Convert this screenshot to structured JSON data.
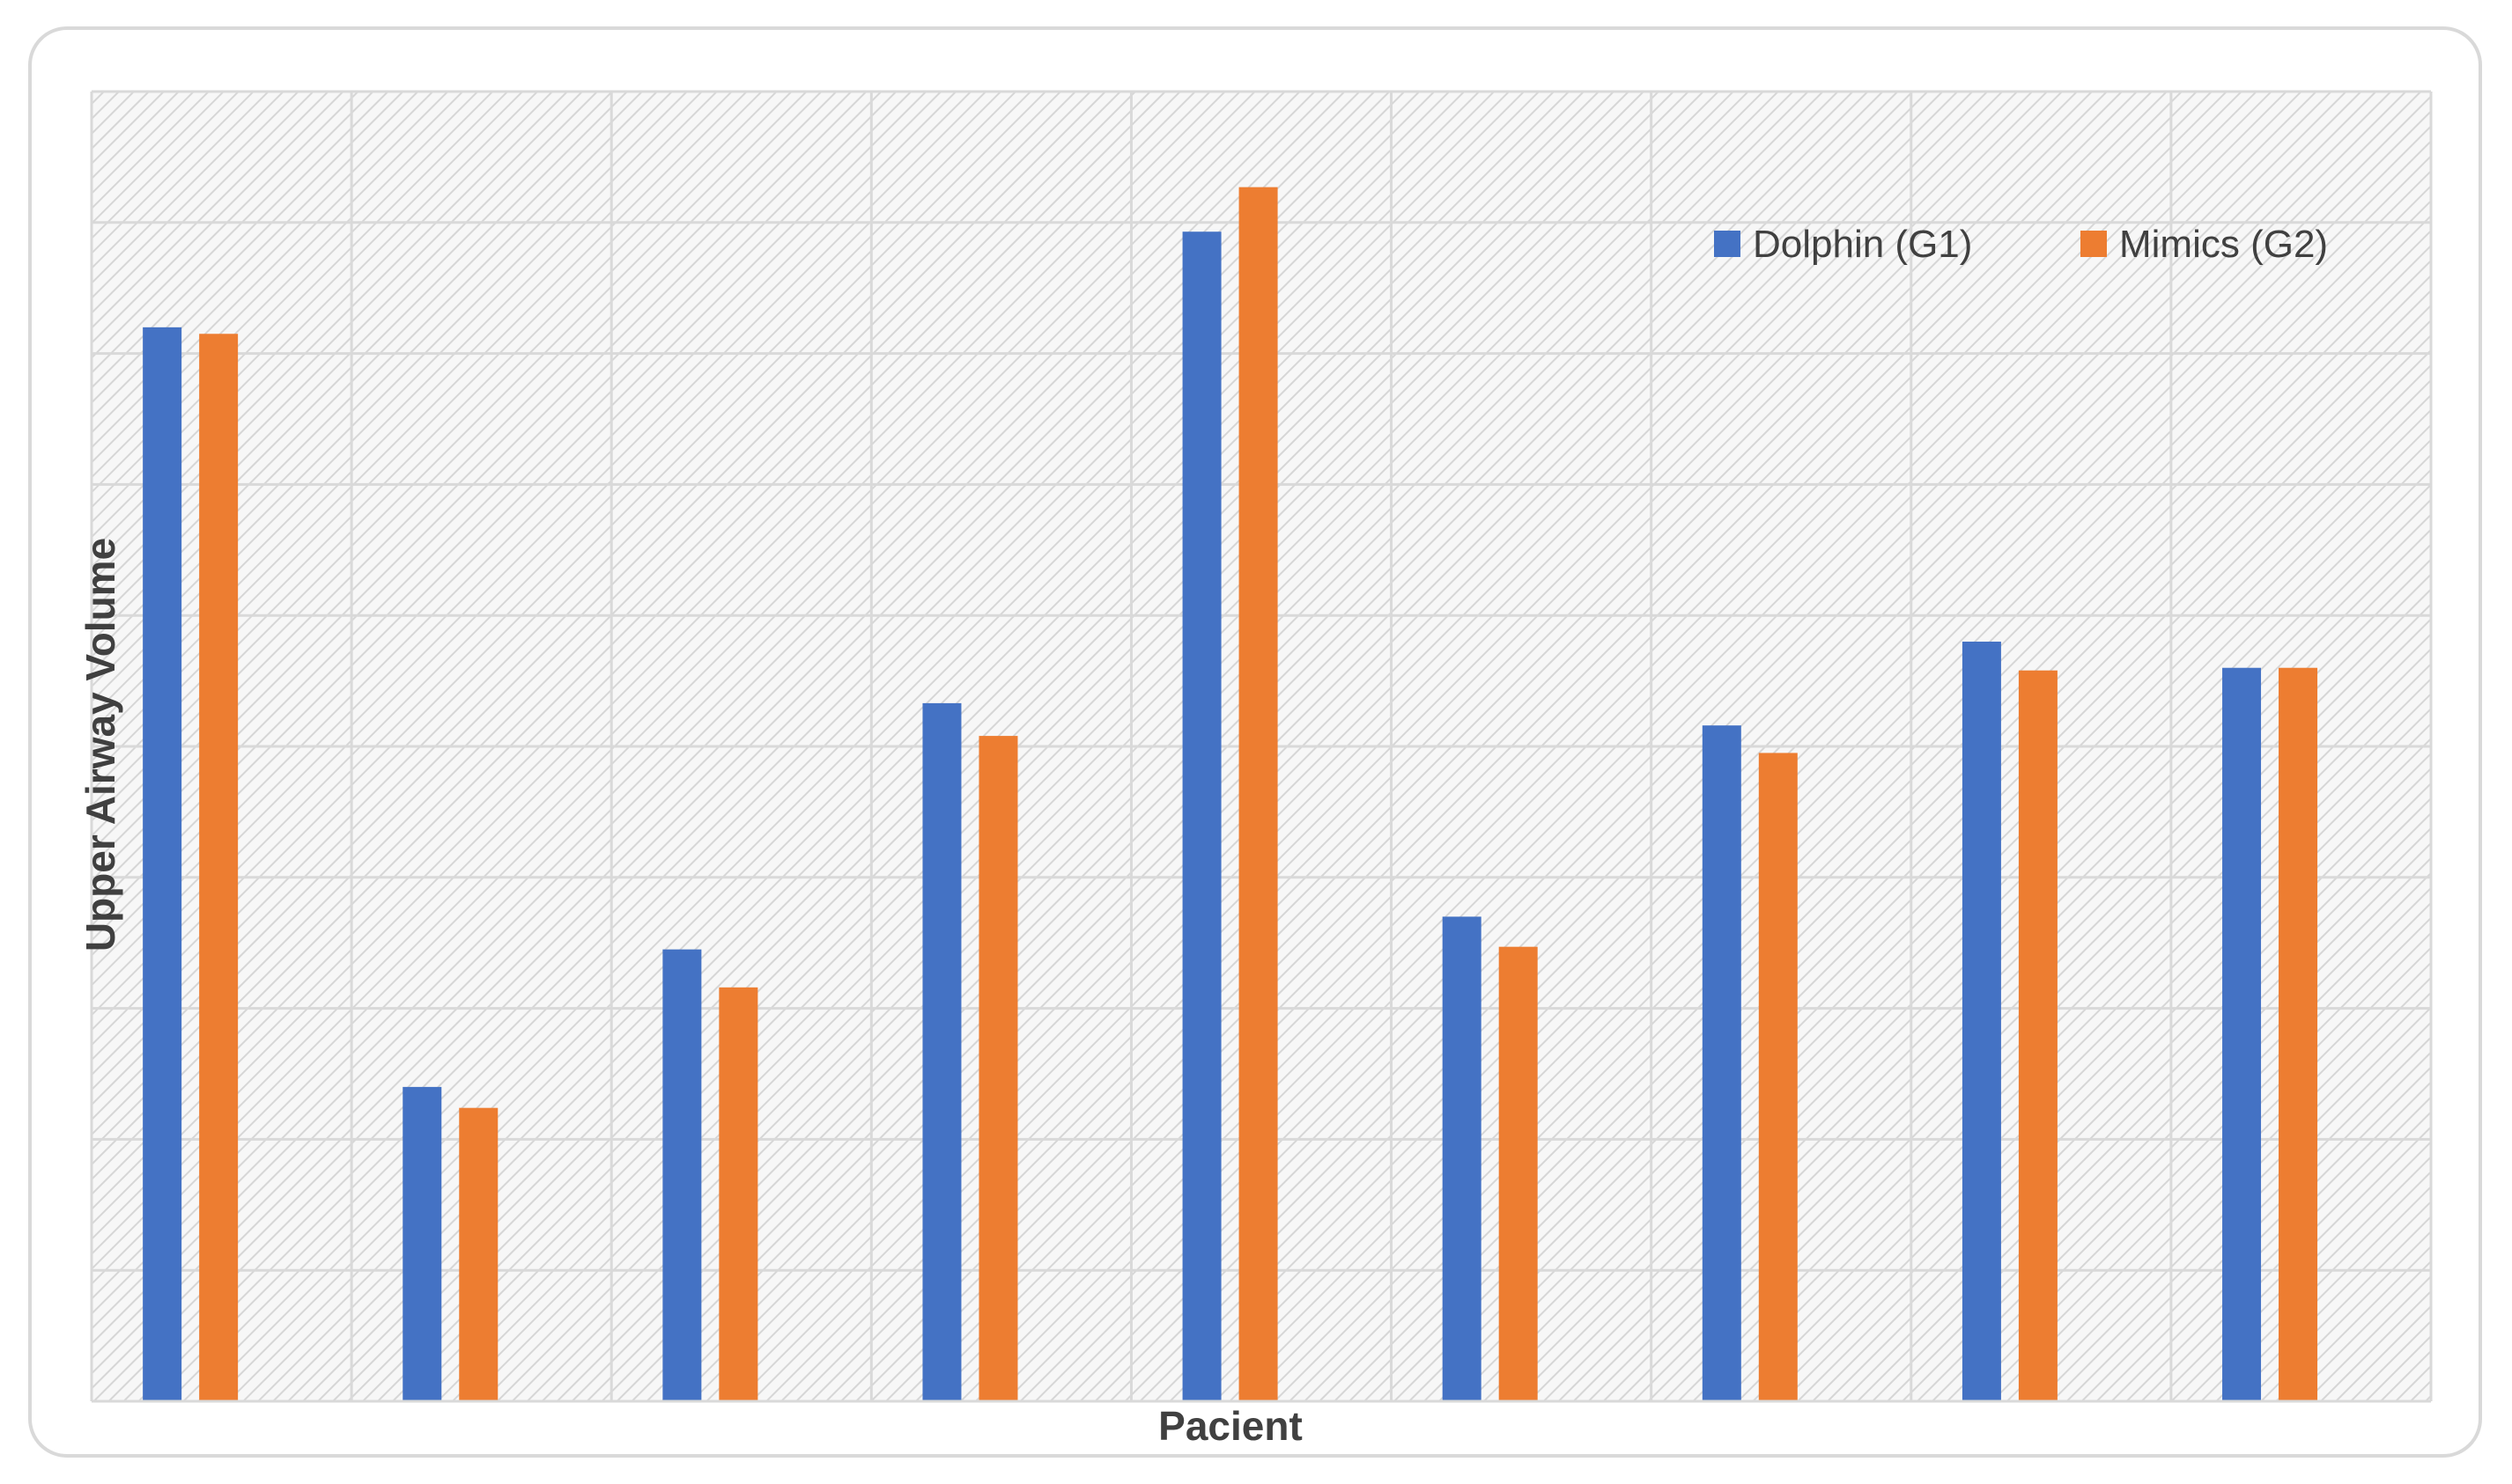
{
  "chart_data": {
    "type": "bar",
    "title": "",
    "xlabel": "Pacient",
    "ylabel": "Upper Airway Volume",
    "categories": [
      "",
      "",
      "",
      "",
      "",
      "",
      "",
      "",
      ""
    ],
    "series": [
      {
        "name": "Dolphin (G1)",
        "color": "#4472c4",
        "values": [
          8.2,
          2.4,
          3.45,
          5.33,
          8.93,
          3.7,
          5.16,
          5.8,
          5.6
        ]
      },
      {
        "name": "Mimics (G2)",
        "color": "#ed7d31",
        "values": [
          8.15,
          2.24,
          3.16,
          5.08,
          9.27,
          3.47,
          4.95,
          5.58,
          5.6
        ]
      }
    ],
    "ylim": [
      0,
      10
    ],
    "grid": true,
    "legend_position": "top-right",
    "background_pattern": "diagonal-hatch"
  }
}
